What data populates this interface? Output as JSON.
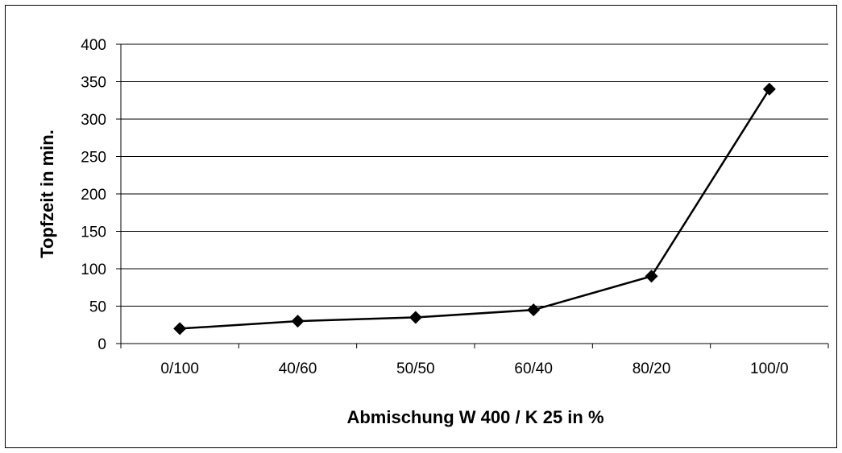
{
  "chart_data": {
    "type": "line",
    "title": "",
    "xlabel": "Abmischung W 400 / K 25 in %",
    "ylabel": "Topfzeit in min.",
    "categories": [
      "0/100",
      "40/60",
      "50/50",
      "60/40",
      "80/20",
      "100/0"
    ],
    "series": [
      {
        "values": [
          20,
          30,
          35,
          45,
          90,
          340
        ],
        "color": "#000000",
        "marker": "diamond"
      }
    ],
    "ylim": [
      0,
      400
    ],
    "yticks": [
      0,
      50,
      100,
      150,
      200,
      250,
      300,
      350,
      400
    ],
    "grid": true,
    "legend": "none"
  }
}
